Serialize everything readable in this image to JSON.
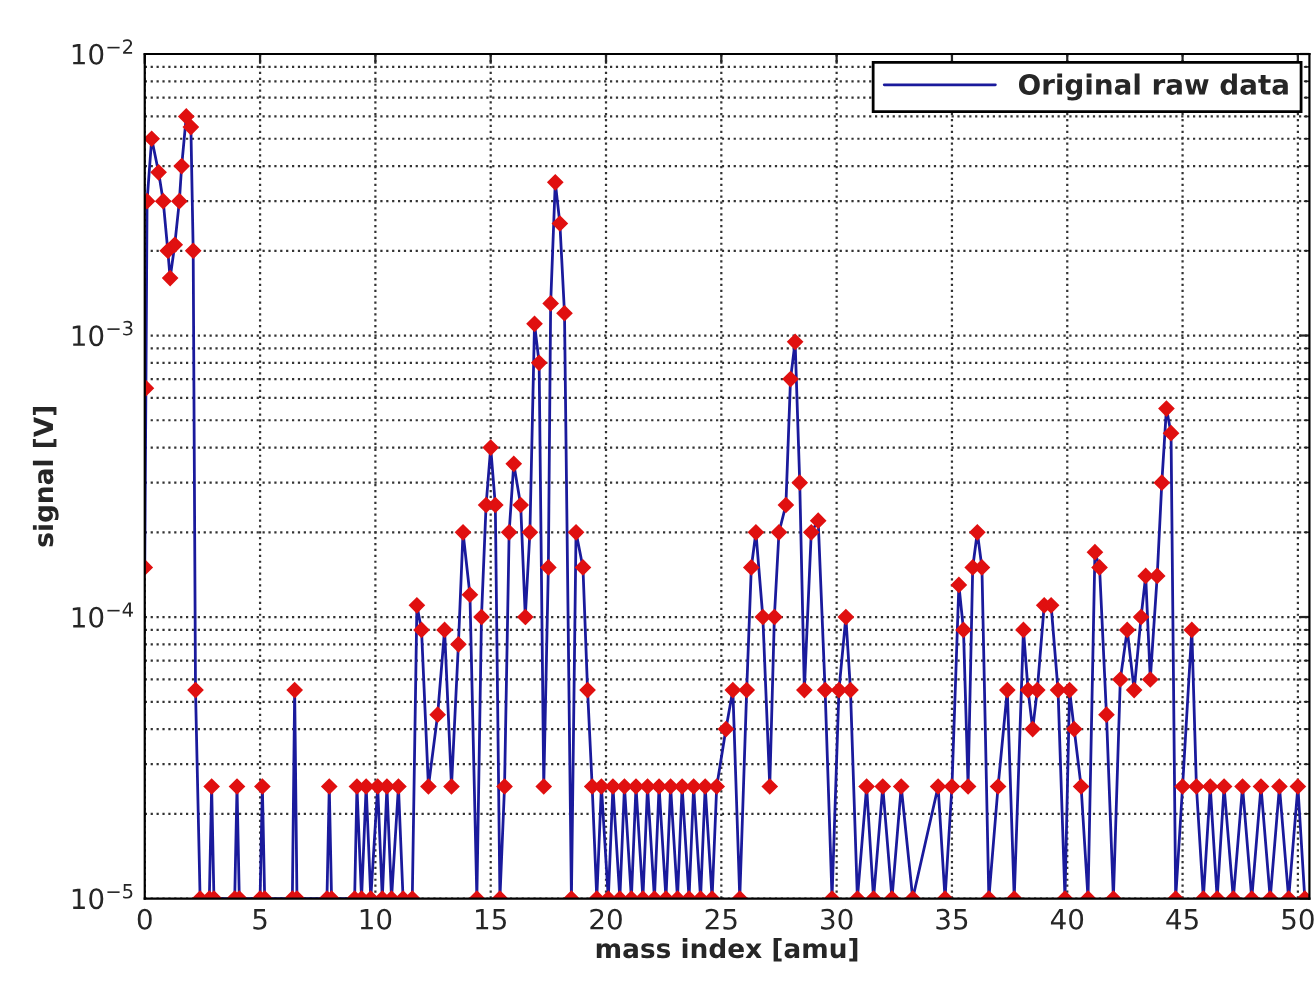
{
  "chart_data": {
    "type": "line",
    "xlabel": "mass index [amu]",
    "ylabel": "signal [V]",
    "log": "y",
    "grid": true,
    "legend": "top right",
    "marker": "diamond",
    "line_style": "solid",
    "xlim": [
      0,
      50.5
    ],
    "xticks": [
      0,
      5,
      10,
      15,
      20,
      25,
      30,
      35,
      40,
      45,
      50
    ],
    "ylim": [
      1e-05,
      0.01
    ],
    "yticks": [
      {
        "value": 1e-05,
        "label": "10$^{−5}$"
      },
      {
        "value": 0.0001,
        "label": "10$^{−4}$"
      },
      {
        "value": 0.001,
        "label": "10$^{−3}$"
      },
      {
        "value": 0.01,
        "label": "10$^{−2}$"
      }
    ],
    "series": [
      {
        "name": "Original raw data",
        "color": "#1a1a9c",
        "x": [
          0,
          0.05,
          0.1,
          0.3,
          0.6,
          0.8,
          1.0,
          1.1,
          1.3,
          1.5,
          1.6,
          1.8,
          2.0,
          2.1,
          2.2,
          2.4,
          2.8,
          2.9,
          3.0,
          3.9,
          4.0,
          4.1,
          5.0,
          5.1,
          5.2,
          6.4,
          6.5,
          6.6,
          7.9,
          8.0,
          8.1,
          9.1,
          9.2,
          9.4,
          9.6,
          9.8,
          10.1,
          10.3,
          10.5,
          10.7,
          11.0,
          11.2,
          11.6,
          11.8,
          12.0,
          12.3,
          12.7,
          13.0,
          13.3,
          13.6,
          13.8,
          14.1,
          14.4,
          14.6,
          14.8,
          15.0,
          15.2,
          15.4,
          15.6,
          15.8,
          16.0,
          16.3,
          16.5,
          16.7,
          16.9,
          17.1,
          17.3,
          17.5,
          17.6,
          17.8,
          18.0,
          18.2,
          18.5,
          18.7,
          19.0,
          19.2,
          19.4,
          19.6,
          19.8,
          20.1,
          20.3,
          20.6,
          20.8,
          21.1,
          21.3,
          21.6,
          21.8,
          22.1,
          22.3,
          22.6,
          22.8,
          23.1,
          23.3,
          23.6,
          23.8,
          24.1,
          24.3,
          24.6,
          24.8,
          25.2,
          25.5,
          25.8,
          26.1,
          26.3,
          26.5,
          26.8,
          27.1,
          27.3,
          27.5,
          27.8,
          28.0,
          28.2,
          28.4,
          28.6,
          28.9,
          29.2,
          29.5,
          29.8,
          30.1,
          30.4,
          30.6,
          30.9,
          31.3,
          31.6,
          32.0,
          32.4,
          32.8,
          33.3,
          34.4,
          34.7,
          35.0,
          35.3,
          35.5,
          35.7,
          35.9,
          36.1,
          36.3,
          36.6,
          37.0,
          37.4,
          37.7,
          38.1,
          38.3,
          38.5,
          38.7,
          39.0,
          39.3,
          39.6,
          39.9,
          40.1,
          40.3,
          40.6,
          40.9,
          41.2,
          41.4,
          41.7,
          42.0,
          42.3,
          42.6,
          42.9,
          43.2,
          43.4,
          43.6,
          43.9,
          44.1,
          44.3,
          44.5,
          44.7,
          45.0,
          45.4,
          45.6,
          45.9,
          46.2,
          46.5,
          46.8,
          47.2,
          47.6,
          48.0,
          48.4,
          48.8,
          49.2,
          49.6,
          50.0,
          50.3
        ],
        "values": [
          0.00015,
          0.00065,
          0.003,
          0.005,
          0.0038,
          0.003,
          0.002,
          0.0016,
          0.0021,
          0.003,
          0.004,
          0.006,
          0.0055,
          0.002,
          5.5e-05,
          1e-05,
          1e-05,
          2.5e-05,
          1e-05,
          1e-05,
          2.5e-05,
          1e-05,
          1e-05,
          2.5e-05,
          1e-05,
          1e-05,
          5.5e-05,
          1e-05,
          1e-05,
          2.5e-05,
          1e-05,
          1e-05,
          2.5e-05,
          1e-05,
          2.5e-05,
          1e-05,
          2.5e-05,
          1e-05,
          2.5e-05,
          1e-05,
          2.5e-05,
          1e-05,
          1e-05,
          0.00011,
          9e-05,
          2.5e-05,
          4.5e-05,
          9e-05,
          2.5e-05,
          8e-05,
          0.0002,
          0.00012,
          1e-05,
          0.0001,
          0.00025,
          0.0004,
          0.00025,
          1e-05,
          2.5e-05,
          0.0002,
          0.00035,
          0.00025,
          0.0001,
          0.0002,
          0.0011,
          0.0008,
          2.5e-05,
          0.00015,
          0.0013,
          0.0035,
          0.0025,
          0.0012,
          1e-05,
          0.0002,
          0.00015,
          5.5e-05,
          2.5e-05,
          1e-05,
          2.5e-05,
          1e-05,
          2.5e-05,
          1e-05,
          2.5e-05,
          1e-05,
          2.5e-05,
          1e-05,
          2.5e-05,
          1e-05,
          2.5e-05,
          1e-05,
          2.5e-05,
          1e-05,
          2.5e-05,
          1e-05,
          2.5e-05,
          1e-05,
          2.5e-05,
          1e-05,
          2.5e-05,
          4e-05,
          5.5e-05,
          1e-05,
          5.5e-05,
          0.00015,
          0.0002,
          0.0001,
          2.5e-05,
          0.0001,
          0.0002,
          0.00025,
          0.0007,
          0.00095,
          0.0003,
          5.5e-05,
          0.0002,
          0.00022,
          5.5e-05,
          1e-05,
          5.5e-05,
          0.0001,
          5.5e-05,
          1e-05,
          2.5e-05,
          1e-05,
          2.5e-05,
          1e-05,
          2.5e-05,
          1e-05,
          2.5e-05,
          1e-05,
          2.5e-05,
          0.00013,
          9e-05,
          2.5e-05,
          0.00015,
          0.0002,
          0.00015,
          1e-05,
          2.5e-05,
          5.5e-05,
          1e-05,
          9e-05,
          5.5e-05,
          4e-05,
          5.5e-05,
          0.00011,
          0.00011,
          5.5e-05,
          1e-05,
          5.5e-05,
          4e-05,
          2.5e-05,
          1e-05,
          0.00017,
          0.00015,
          4.5e-05,
          1e-05,
          6e-05,
          9e-05,
          5.5e-05,
          0.0001,
          0.00014,
          6e-05,
          0.00014,
          0.0003,
          0.00055,
          0.00045,
          1e-05,
          2.5e-05,
          9e-05,
          2.5e-05,
          1e-05,
          2.5e-05,
          1e-05,
          2.5e-05,
          1e-05,
          2.5e-05,
          1e-05,
          2.5e-05,
          1e-05,
          2.5e-05,
          1e-05,
          2.5e-05,
          1e-05
        ]
      }
    ]
  }
}
